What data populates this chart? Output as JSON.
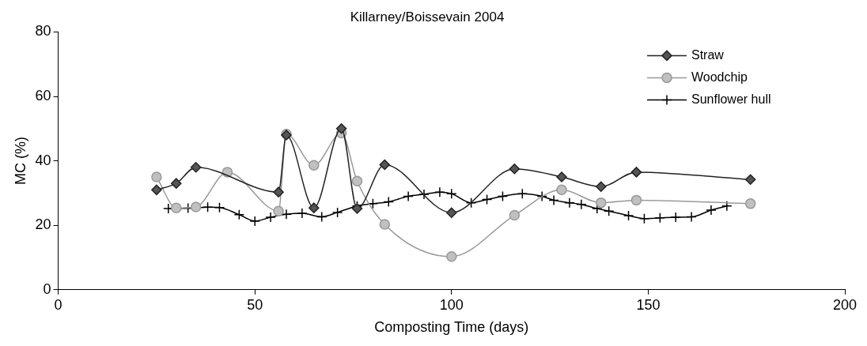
{
  "chart_data": {
    "type": "line",
    "title": "Killarney/Boissevain 2004",
    "xlabel": "Composting Time (days)",
    "ylabel": "MC (%)",
    "xlim": [
      0,
      200
    ],
    "xticks": [
      0,
      50,
      100,
      150,
      200
    ],
    "ylim": [
      0,
      80
    ],
    "yticks": [
      0,
      20,
      40,
      60,
      80
    ],
    "grid": false,
    "legend": "top right",
    "line_style": "solid",
    "series": [
      {
        "name": "Straw",
        "color": "#222222",
        "marker": "diamond",
        "x": [
          25,
          30,
          35,
          56,
          58,
          65,
          72,
          76,
          83,
          100,
          116,
          128,
          138,
          147,
          176
        ],
        "values": [
          31,
          33,
          38,
          30.3,
          48,
          25.4,
          50,
          25.2,
          38.8,
          23.9,
          37.5,
          35,
          32,
          36.5,
          34.2
        ]
      },
      {
        "name": "Woodchip",
        "color": "#999999",
        "marker": "circle",
        "x": [
          25,
          30,
          35,
          43,
          56,
          58,
          65,
          72,
          76,
          83,
          100,
          116,
          128,
          138,
          147,
          176
        ],
        "values": [
          35,
          25.4,
          25.7,
          36.5,
          24.4,
          48.3,
          38.6,
          48.6,
          33.7,
          20.3,
          10.3,
          23.1,
          31,
          27,
          27.8,
          26.7
        ]
      },
      {
        "name": "Sunflower hull",
        "color": "#000000",
        "marker": "cross",
        "x": [
          28,
          33,
          38,
          41,
          46,
          50,
          54,
          58,
          62,
          67,
          71,
          76,
          80,
          84,
          89,
          93,
          97,
          100,
          105,
          109,
          113,
          118,
          123,
          126,
          130,
          133,
          137,
          140,
          145,
          149,
          153,
          157,
          161,
          166,
          170
        ],
        "values": [
          25.2,
          25.3,
          25.6,
          25.5,
          23.3,
          21.3,
          22.5,
          23.4,
          23.7,
          22.6,
          24,
          26,
          26.7,
          27.3,
          29,
          29.6,
          30.3,
          29.8,
          27,
          28,
          29,
          29.8,
          29,
          27.8,
          27,
          26.5,
          25.2,
          24.4,
          23,
          22.1,
          22.3,
          22.5,
          22.6,
          24.7,
          26
        ]
      }
    ]
  }
}
